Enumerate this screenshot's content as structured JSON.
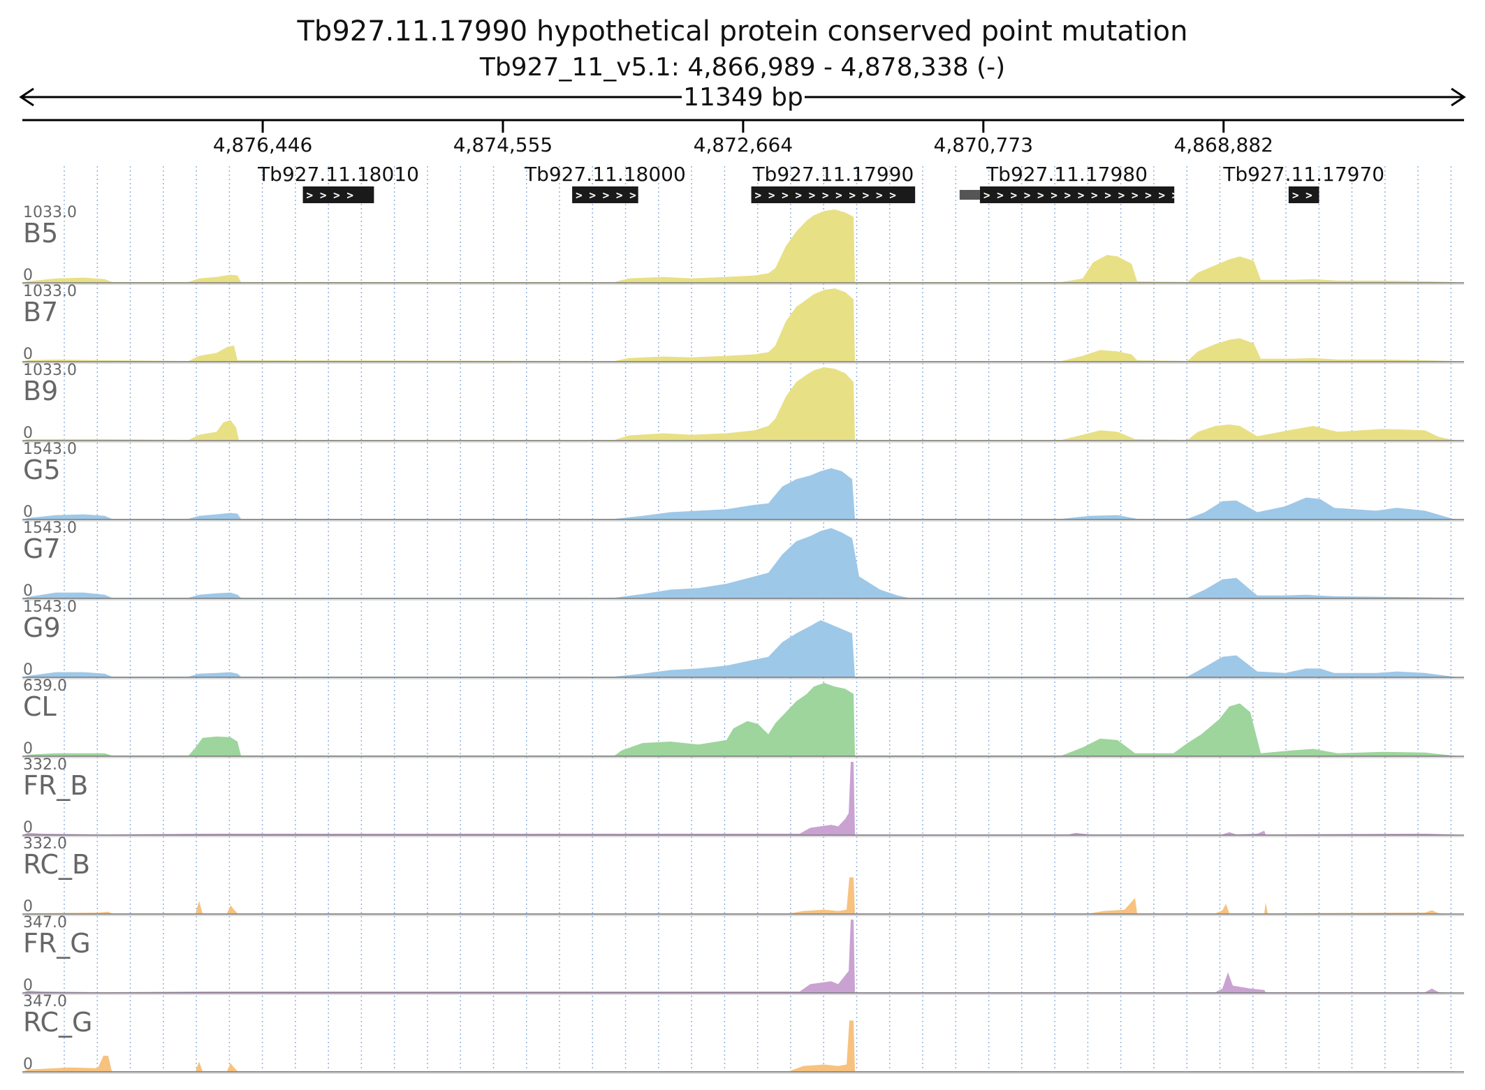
{
  "chart_data": {
    "type": "area",
    "title": "Tb927.11.17990  hypothetical protein  conserved  point mutation",
    "subtitle": "Tb927_11_v5.1: 4,866,989 - 4,878,338 (-)",
    "span_label": "11349 bp",
    "region": {
      "start": 4866989,
      "end": 4878338,
      "strand": "-"
    },
    "ticks": [
      {
        "pos": 4876446,
        "label": "4,876,446"
      },
      {
        "pos": 4874555,
        "label": "4,874,555"
      },
      {
        "pos": 4872664,
        "label": "4,872,664"
      },
      {
        "pos": 4870773,
        "label": "4,870,773"
      },
      {
        "pos": 4868882,
        "label": "4,868,882"
      }
    ],
    "genes": [
      {
        "name": "Tb927.11.18010",
        "start": 4875570,
        "end": 4876130,
        "chevrons": "> > > >"
      },
      {
        "name": "Tb927.11.18000",
        "start": 4873490,
        "end": 4874010,
        "chevrons": "> > > > >"
      },
      {
        "name": "Tb927.11.17990",
        "start": 4871310,
        "end": 4872600,
        "chevrons": "> > > > > > > > > > >"
      },
      {
        "name": "Tb927.11.17980",
        "start": 4869270,
        "end": 4870960,
        "chevrons": "> > > > > > > > > > > > > > > > >",
        "prefix_end": 4870800
      },
      {
        "name": "Tb927.11.17970",
        "start": 4868130,
        "end": 4868370,
        "chevrons": "> >"
      }
    ],
    "tracks": [
      {
        "name": "B5",
        "max_label": "1033.0",
        "zero_label": "0",
        "max": 1033,
        "color": "#e8e085"
      },
      {
        "name": "B7",
        "max_label": "1033.0",
        "zero_label": "0",
        "max": 1033,
        "color": "#e8e085"
      },
      {
        "name": "B9",
        "max_label": "1033.0",
        "zero_label": "0",
        "max": 1033,
        "color": "#e8e085"
      },
      {
        "name": "G5",
        "max_label": "1543.0",
        "zero_label": "0",
        "max": 1543,
        "color": "#9ec8e8"
      },
      {
        "name": "G7",
        "max_label": "1543.0",
        "zero_label": "0",
        "max": 1543,
        "color": "#9ec8e8"
      },
      {
        "name": "G9",
        "max_label": "1543.0",
        "zero_label": "0",
        "max": 1543,
        "color": "#9ec8e8"
      },
      {
        "name": "CL",
        "max_label": "639.0",
        "zero_label": "0",
        "max": 639,
        "color": "#9dd59d"
      },
      {
        "name": "FR_B",
        "max_label": "332.0",
        "zero_label": "0",
        "max": 332,
        "color": "#c9a2d2"
      },
      {
        "name": "RC_B",
        "max_label": "332.0",
        "zero_label": "0",
        "max": 332,
        "color": "#f7c27f"
      },
      {
        "name": "FR_G",
        "max_label": "347.0",
        "zero_label": "0",
        "max": 347,
        "color": "#c9a2d2"
      },
      {
        "name": "RC_G",
        "max_label": "347.0",
        "zero_label": "0",
        "max": 347,
        "color": "#f7c27f"
      }
    ],
    "colors": {
      "gridline": "#8fb3e0",
      "axis": "#000000",
      "gene_box": "#1a1a1a"
    }
  }
}
